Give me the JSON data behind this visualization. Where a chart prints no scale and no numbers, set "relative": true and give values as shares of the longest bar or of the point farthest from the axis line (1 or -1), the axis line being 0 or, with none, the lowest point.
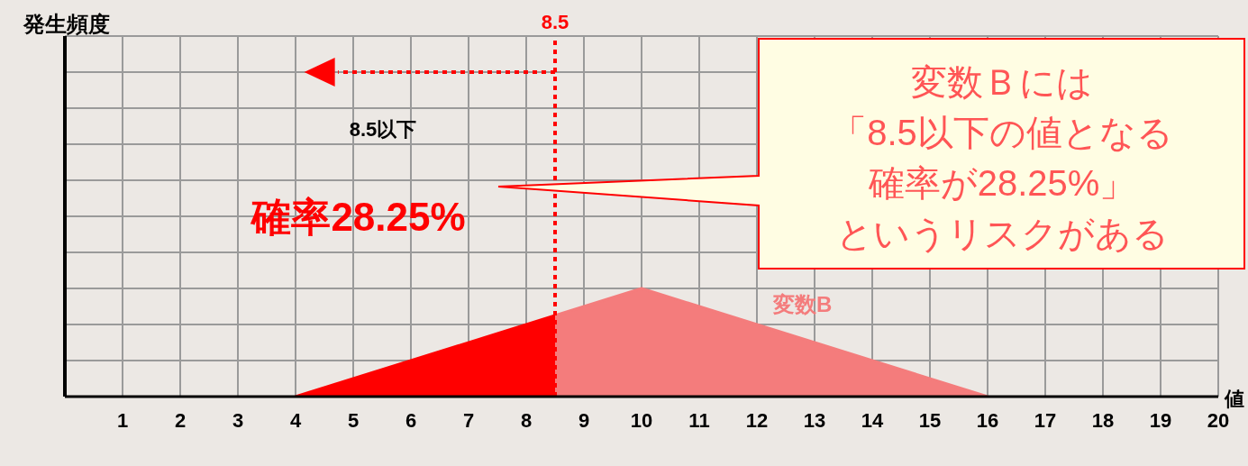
{
  "chart_data": {
    "type": "area",
    "xlabel": "値",
    "relative": true,
    "xlim": [
      0,
      20
    ],
    "xticks": [
      1,
      2,
      3,
      4,
      5,
      6,
      7,
      8,
      9,
      10,
      11,
      12,
      13,
      14,
      15,
      16,
      17,
      18,
      19,
      20
    ],
    "series": [
      {
        "color": "#ff0000",
        "x": [
          4,
          8.5
        ],
        "values": [
          0,
          0.75
        ]
      },
      {
        "name": "変数B",
        "color": "#f47c7c",
        "x": [
          8.5,
          10,
          16
        ],
        "values": [
          0.75,
          1,
          0
        ]
      }
    ],
    "ref_lines": [
      {
        "axis": "x",
        "value": 8.5,
        "label": "8.5",
        "color": "#ff0000",
        "line_style": "dotted"
      }
    ],
    "annotations": [
      "発生頻度",
      "8.5以下",
      "確率28.25%",
      "変数Ｂには",
      "「8.5以下の値となる",
      "確率が28.25%」",
      "というリスクがある"
    ],
    "grid": true,
    "marker": "none",
    "line_style": "solid"
  }
}
